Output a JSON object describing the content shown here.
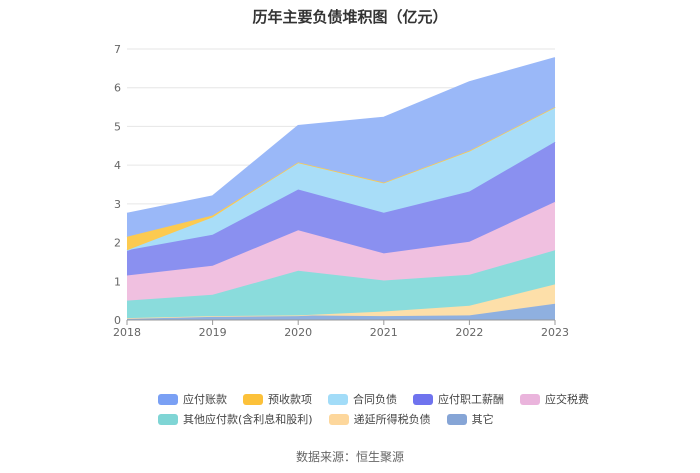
{
  "title": "历年主要负债堆积图（亿元）",
  "source": "数据来源：恒生聚源",
  "chart_data": {
    "type": "area",
    "stacked": true,
    "x": [
      "2018",
      "2019",
      "2020",
      "2021",
      "2022",
      "2023"
    ],
    "ylim": [
      0,
      7
    ],
    "yticks": [
      "0",
      "1",
      "2",
      "3",
      "4",
      "5",
      "6",
      "7"
    ],
    "grid": true,
    "legend_position": "bottom",
    "series": [
      {
        "name": "其它",
        "color": "#8fb0e0",
        "values": [
          0.05,
          0.1,
          0.12,
          0.1,
          0.12,
          0.42
        ]
      },
      {
        "name": "递延所得税负债",
        "color": "#fddfa9",
        "values": [
          0.0,
          0.0,
          0.0,
          0.12,
          0.25,
          0.5
        ]
      },
      {
        "name": "其他应付款(含利息和股利)",
        "color": "#8adcdc",
        "values": [
          0.45,
          0.55,
          1.15,
          0.8,
          0.8,
          0.88
        ]
      },
      {
        "name": "应交税费",
        "color": "#f0c0e0",
        "values": [
          0.65,
          0.75,
          1.05,
          0.7,
          0.85,
          1.25
        ]
      },
      {
        "name": "应付职工薪酬",
        "color": "#8a90f0",
        "values": [
          0.65,
          0.8,
          1.05,
          1.05,
          1.3,
          1.55
        ]
      },
      {
        "name": "合同负债",
        "color": "#a8ddf8",
        "values": [
          0.0,
          0.45,
          0.7,
          0.78,
          1.05,
          0.9
        ]
      },
      {
        "name": "预收款项",
        "color": "#fcca50",
        "values": [
          0.35,
          0.05,
          0.0,
          0.0,
          0.0,
          0.0
        ]
      },
      {
        "name": "应付账款",
        "color": "#9ab8f8",
        "values": [
          0.6,
          0.5,
          0.95,
          1.68,
          1.78,
          1.27
        ]
      }
    ]
  },
  "legend": {
    "row1": [
      {
        "label": "应付账款",
        "color": "#7aa0f4"
      },
      {
        "label": "预收款项",
        "color": "#fcc13a"
      },
      {
        "label": "合同负债",
        "color": "#a2dcf8"
      },
      {
        "label": "应付职工薪酬",
        "color": "#6f73ee"
      },
      {
        "label": "应交税费",
        "color": "#eab4dc"
      }
    ],
    "row2": [
      {
        "label": "其他应付款(含利息和股利)",
        "color": "#7fd5d5"
      },
      {
        "label": "递延所得税负债",
        "color": "#fdd79c"
      },
      {
        "label": "其它",
        "color": "#86a5d6"
      }
    ]
  }
}
